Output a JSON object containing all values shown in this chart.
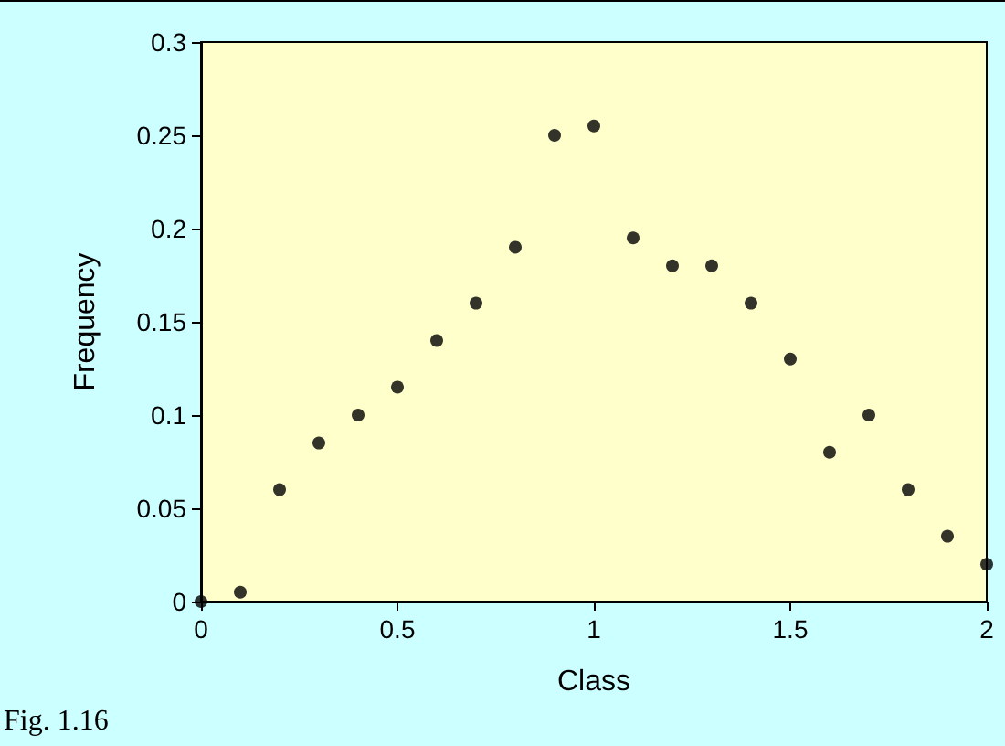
{
  "chart_data": {
    "type": "scatter",
    "xlabel": "Class",
    "ylabel": "Frequency",
    "annotations": [
      "Fig. 1.16"
    ],
    "x": [
      0,
      0.1,
      0.2,
      0.3,
      0.4,
      0.5,
      0.6,
      0.7,
      0.8,
      0.9,
      1.0,
      1.1,
      1.2,
      1.3,
      1.4,
      1.5,
      1.6,
      1.7,
      1.8,
      1.9,
      2.0
    ],
    "series": [
      {
        "color": "#000000",
        "values": [
          0,
          0.005,
          0.06,
          0.085,
          0.1,
          0.115,
          0.14,
          0.16,
          0.19,
          0.25,
          0.255,
          0.195,
          0.18,
          0.18,
          0.16,
          0.13,
          0.08,
          0.1,
          0.06,
          0.035,
          0.02
        ]
      }
    ],
    "xlim": [
      0,
      2
    ],
    "xticks": [
      0,
      0.5,
      1,
      1.5,
      2
    ],
    "ylim": [
      0,
      0.3
    ],
    "yticks": [
      0,
      0.05,
      0.1,
      0.15,
      0.2,
      0.25,
      0.3
    ],
    "grid": false,
    "marker": "circle"
  }
}
